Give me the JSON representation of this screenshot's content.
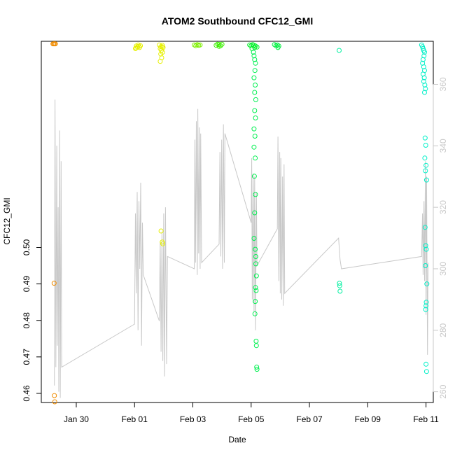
{
  "chart_data": {
    "type": "scatter",
    "title": "ATOM2 Southbound CFC12_GMI",
    "xlabel": "Date",
    "ylabel": "CFC12_GMI",
    "xlim": [
      28.8,
      42.25
    ],
    "ylim": [
      0.4575,
      0.5565
    ],
    "y2lim": [
      256.5,
      374.0
    ],
    "x_ticks": [
      {
        "x": 30,
        "label": "Jan 30"
      },
      {
        "x": 32,
        "label": "Feb 01"
      },
      {
        "x": 34,
        "label": "Feb 03"
      },
      {
        "x": 36,
        "label": "Feb 05"
      },
      {
        "x": 38,
        "label": "Feb 07"
      },
      {
        "x": 40,
        "label": "Feb 09"
      },
      {
        "x": 42,
        "label": "Feb 11"
      }
    ],
    "y_ticks": [
      {
        "y": 0.46,
        "label": "0.46"
      },
      {
        "y": 0.47,
        "label": "0.47"
      },
      {
        "y": 0.48,
        "label": "0.48"
      },
      {
        "y": 0.49,
        "label": "0.49"
      },
      {
        "y": 0.5,
        "label": "0.50"
      }
    ],
    "y2_ticks": [
      {
        "y": 260,
        "label": "260"
      },
      {
        "y": 280,
        "label": "280"
      },
      {
        "y": 300,
        "label": "300"
      },
      {
        "y": 320,
        "label": "320"
      },
      {
        "y": 340,
        "label": "340"
      },
      {
        "y": 360,
        "label": "360"
      }
    ],
    "grid": false,
    "altitude_line_color": "#c8c8c8",
    "groups": [
      {
        "color": "#f08c00",
        "points": [
          [
            29.2,
            0.5558
          ],
          [
            29.23,
            0.5558
          ],
          [
            29.26,
            0.5558
          ],
          [
            29.28,
            0.5558
          ],
          [
            29.24,
            0.4902
          ],
          [
            29.25,
            0.4594
          ],
          [
            29.26,
            0.4577
          ]
        ]
      },
      {
        "color": "#e6f000",
        "points": [
          [
            32.03,
            0.5545
          ],
          [
            32.06,
            0.5552
          ],
          [
            32.1,
            0.5549
          ],
          [
            32.13,
            0.5555
          ],
          [
            32.17,
            0.5548
          ],
          [
            32.2,
            0.5553
          ],
          [
            32.05,
            0.5547
          ],
          [
            32.15,
            0.5551
          ]
        ]
      },
      {
        "color": "#e6f000",
        "points": [
          [
            32.85,
            0.5555
          ],
          [
            32.9,
            0.555
          ],
          [
            32.95,
            0.5554
          ],
          [
            32.98,
            0.5548
          ],
          [
            32.88,
            0.5545
          ],
          [
            32.92,
            0.554
          ],
          [
            32.96,
            0.5535
          ],
          [
            32.9,
            0.553
          ],
          [
            32.93,
            0.552
          ],
          [
            32.88,
            0.551
          ],
          [
            32.95,
            0.5015
          ],
          [
            32.97,
            0.501
          ],
          [
            32.91,
            0.5045
          ],
          [
            32.95,
            0.555
          ]
        ]
      },
      {
        "color": "#7ef000",
        "points": [
          [
            34.05,
            0.5555
          ],
          [
            34.1,
            0.5553
          ],
          [
            34.15,
            0.5556
          ],
          [
            34.2,
            0.5554
          ],
          [
            34.25,
            0.5555
          ]
        ]
      },
      {
        "color": "#3cf000",
        "points": [
          [
            34.8,
            0.5554
          ],
          [
            34.85,
            0.5557
          ],
          [
            34.9,
            0.5556
          ],
          [
            34.95,
            0.5553
          ],
          [
            35.0,
            0.5557
          ],
          [
            34.9,
            0.5551
          ]
        ]
      },
      {
        "color": "#00f028",
        "points": [
          [
            35.95,
            0.5555
          ],
          [
            36.0,
            0.5553
          ],
          [
            36.05,
            0.5556
          ],
          [
            36.1,
            0.5554
          ],
          [
            36.15,
            0.5552
          ],
          [
            36.2,
            0.5549
          ],
          [
            36.03,
            0.5545
          ],
          [
            36.12,
            0.5548
          ]
        ]
      },
      {
        "color": "#00f040",
        "points": [
          [
            36.8,
            0.5556
          ],
          [
            36.85,
            0.5553
          ],
          [
            36.9,
            0.5555
          ],
          [
            36.95,
            0.5552
          ],
          [
            36.92,
            0.5548
          ]
        ]
      },
      {
        "color": "#00f050",
        "points": [
          [
            36.08,
            0.5535
          ],
          [
            36.1,
            0.5525
          ],
          [
            36.12,
            0.5515
          ],
          [
            36.15,
            0.5505
          ],
          [
            36.13,
            0.5485
          ],
          [
            36.1,
            0.5465
          ],
          [
            36.14,
            0.5445
          ],
          [
            36.12,
            0.5425
          ],
          [
            36.16,
            0.5405
          ],
          [
            36.12,
            0.5375
          ],
          [
            36.15,
            0.5355
          ],
          [
            36.1,
            0.5325
          ],
          [
            36.13,
            0.5305
          ],
          [
            36.1,
            0.5275
          ],
          [
            36.14,
            0.5245
          ],
          [
            36.11,
            0.5195
          ],
          [
            36.15,
            0.5145
          ],
          [
            36.12,
            0.5095
          ],
          [
            36.1,
            0.5025
          ],
          [
            36.14,
            0.4995
          ],
          [
            36.16,
            0.4975
          ],
          [
            36.16,
            0.4955
          ],
          [
            36.18,
            0.4922
          ],
          [
            36.15,
            0.489
          ],
          [
            36.17,
            0.4882
          ],
          [
            36.14,
            0.4852
          ],
          [
            36.13,
            0.4818
          ],
          [
            36.17,
            0.4743
          ],
          [
            36.18,
            0.4731
          ],
          [
            36.19,
            0.4672
          ],
          [
            36.2,
            0.4666
          ]
        ]
      },
      {
        "color": "#00f0a0",
        "points": [
          [
            39.02,
            0.554
          ],
          [
            39.03,
            0.4902
          ],
          [
            39.04,
            0.4895
          ],
          [
            39.05,
            0.488
          ]
        ]
      },
      {
        "color": "#00f0c8",
        "points": [
          [
            41.85,
            0.5555
          ],
          [
            41.88,
            0.555
          ],
          [
            41.9,
            0.5545
          ],
          [
            41.92,
            0.554
          ],
          [
            41.95,
            0.5535
          ],
          [
            41.93,
            0.5525
          ],
          [
            41.9,
            0.5515
          ],
          [
            41.88,
            0.5505
          ],
          [
            41.92,
            0.5495
          ],
          [
            41.95,
            0.5485
          ],
          [
            41.9,
            0.5475
          ],
          [
            41.94,
            0.5465
          ],
          [
            41.92,
            0.5455
          ],
          [
            41.96,
            0.5445
          ],
          [
            41.98,
            0.5435
          ],
          [
            41.95,
            0.5425
          ],
          [
            41.97,
            0.53
          ],
          [
            41.99,
            0.528
          ],
          [
            41.96,
            0.5245
          ],
          [
            42.0,
            0.5225
          ],
          [
            41.98,
            0.521
          ],
          [
            42.02,
            0.5185
          ],
          [
            41.97,
            0.5055
          ],
          [
            41.99,
            0.5005
          ],
          [
            42.01,
            0.4995
          ],
          [
            41.98,
            0.495
          ],
          [
            41.99,
            0.483
          ],
          [
            42.0,
            0.468
          ],
          [
            42.02,
            0.466
          ],
          [
            42.01,
            0.485
          ],
          [
            42.03,
            0.49
          ],
          [
            42.0,
            0.484
          ]
        ]
      }
    ],
    "altitude": {
      "x": [
        29.25,
        29.27,
        29.3,
        29.33,
        29.35,
        29.38,
        29.4,
        29.43,
        29.45,
        29.48,
        29.5,
        32.0,
        32.03,
        32.06,
        32.09,
        32.12,
        32.15,
        32.18,
        32.21,
        32.24,
        32.27,
        32.3,
        32.85,
        32.88,
        32.91,
        32.94,
        32.97,
        33.0,
        33.03,
        33.06,
        33.1,
        33.13,
        34.05,
        34.07,
        34.09,
        34.12,
        34.15,
        34.17,
        34.2,
        34.22,
        34.25,
        34.27,
        34.3,
        34.9,
        34.93,
        34.96,
        34.99,
        35.02,
        35.05,
        35.08,
        35.1,
        36.0,
        36.02,
        36.04,
        36.07,
        36.1,
        36.12,
        36.15,
        36.18,
        36.2,
        36.9,
        36.92,
        36.95,
        36.98,
        37.0,
        37.02,
        37.05,
        37.08,
        37.1,
        37.13,
        37.15,
        39.0,
        39.05,
        39.1,
        41.85,
        41.88,
        41.9,
        41.93,
        41.95,
        41.98,
        42.0,
        42.02,
        42.05,
        42.07
      ],
      "y": [
        262,
        355,
        268,
        340,
        275,
        320,
        260,
        345,
        258,
        335,
        268,
        282,
        318,
        292,
        325,
        280,
        322,
        300,
        328,
        275,
        315,
        298,
        283,
        309,
        273,
        312,
        270,
        318,
        265,
        320,
        269,
        304,
        300,
        342,
        302,
        348,
        298,
        352,
        305,
        346,
        300,
        344,
        302,
        308,
        338,
        304,
        342,
        300,
        347,
        302,
        344,
        315,
        336,
        290,
        331,
        286,
        330,
        280,
        325,
        301,
        313,
        343,
        296,
        338,
        292,
        336,
        290,
        330,
        288,
        334,
        292,
        310,
        303,
        300,
        304,
        318,
        298,
        322,
        296,
        335,
        285,
        330,
        272,
        302
      ]
    }
  }
}
